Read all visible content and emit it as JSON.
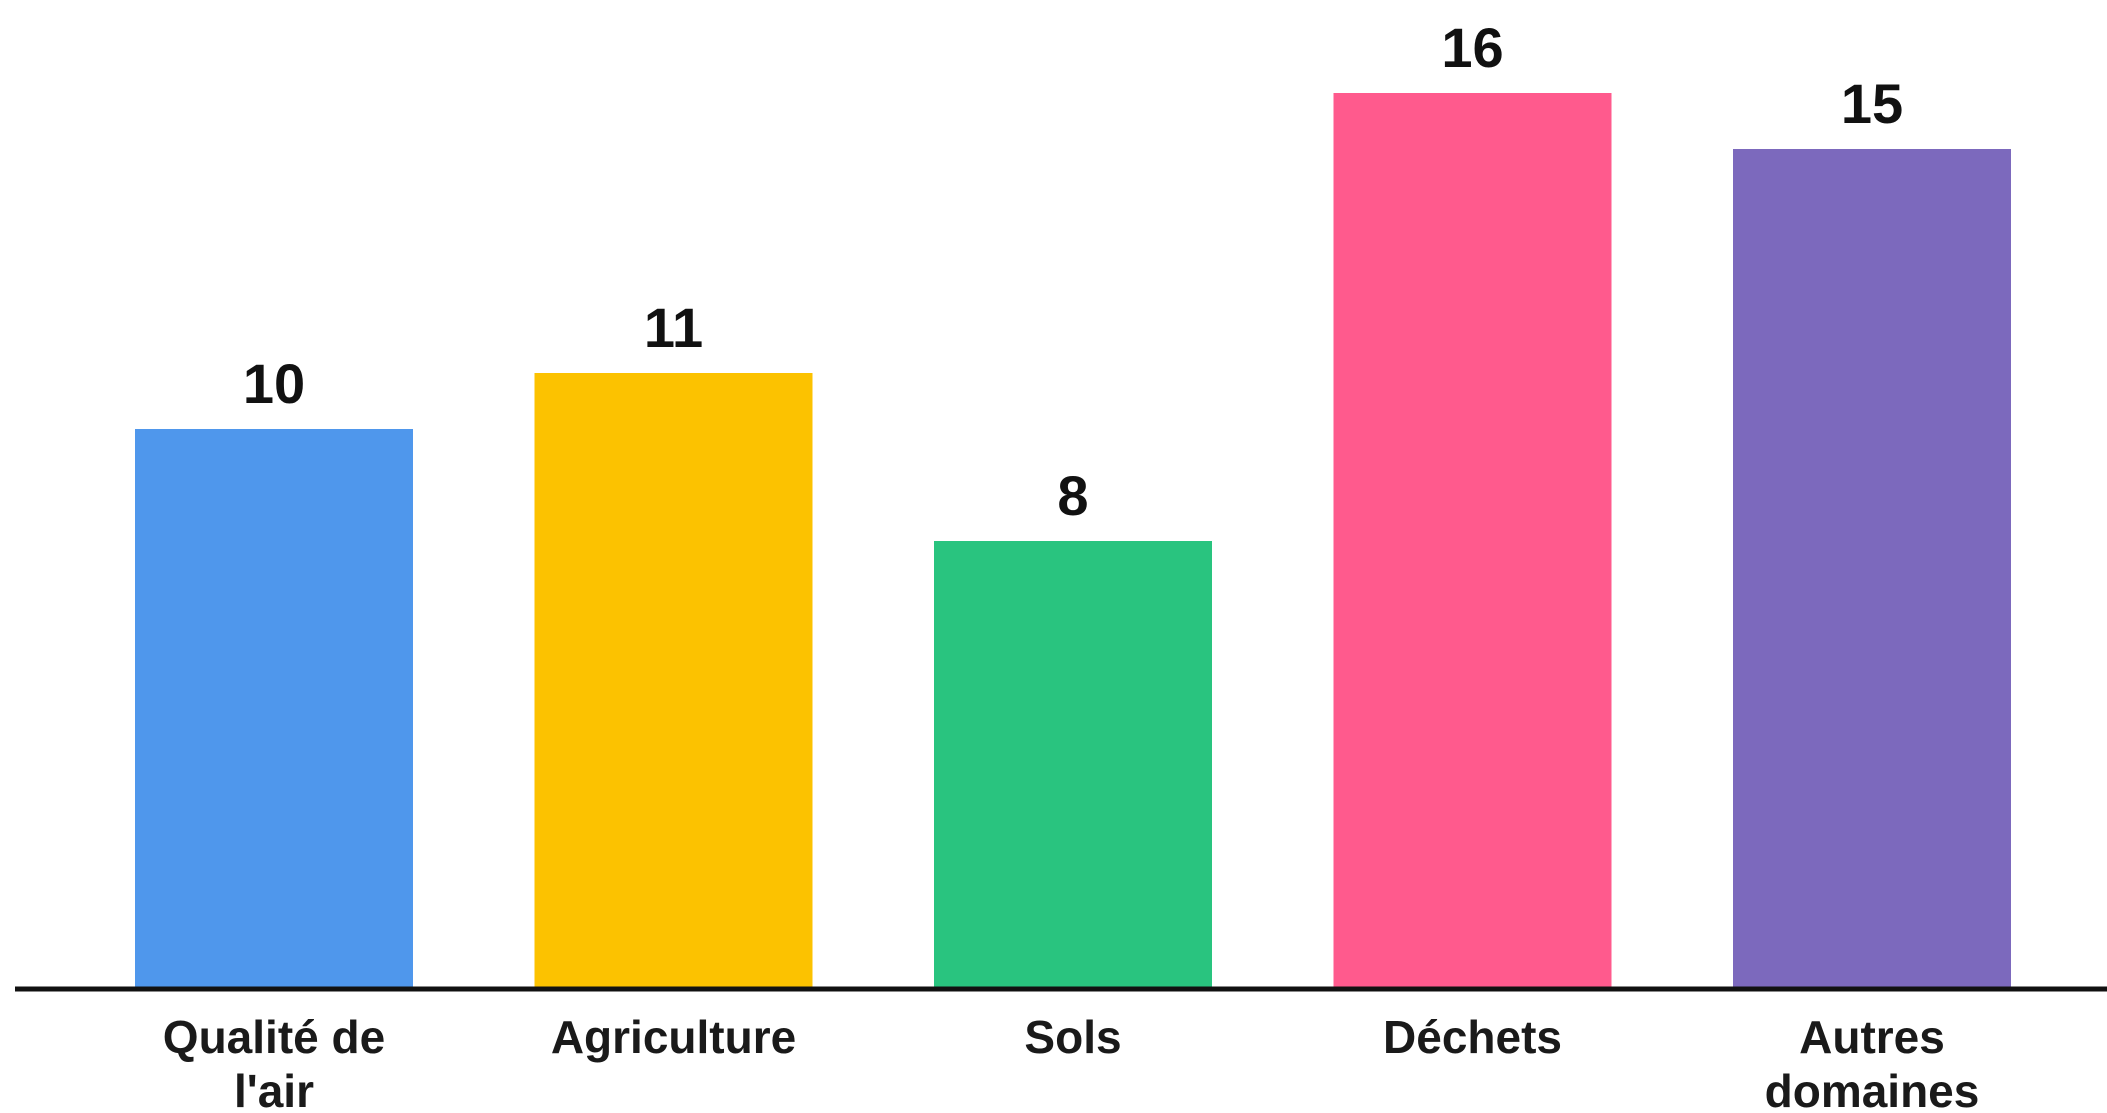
{
  "chart_data": {
    "type": "bar",
    "categories": [
      [
        "Qualité de",
        "l'air"
      ],
      [
        "Agriculture"
      ],
      [
        "Sols"
      ],
      [
        "Déchets"
      ],
      [
        "Autres",
        "domaines"
      ]
    ],
    "values": [
      10,
      11,
      8,
      16,
      15
    ],
    "value_labels": [
      "10",
      "11",
      "8",
      "16",
      "15"
    ],
    "colors": [
      "#4F97EC",
      "#FCC200",
      "#29C47F",
      "#FF5A8D",
      "#7C69BD"
    ],
    "title": "",
    "xlabel": "",
    "ylabel": "",
    "ylim": [
      0,
      16
    ],
    "grid": false,
    "legend": "none",
    "data_labels": "above-bars",
    "baseline_color": "#111111"
  }
}
